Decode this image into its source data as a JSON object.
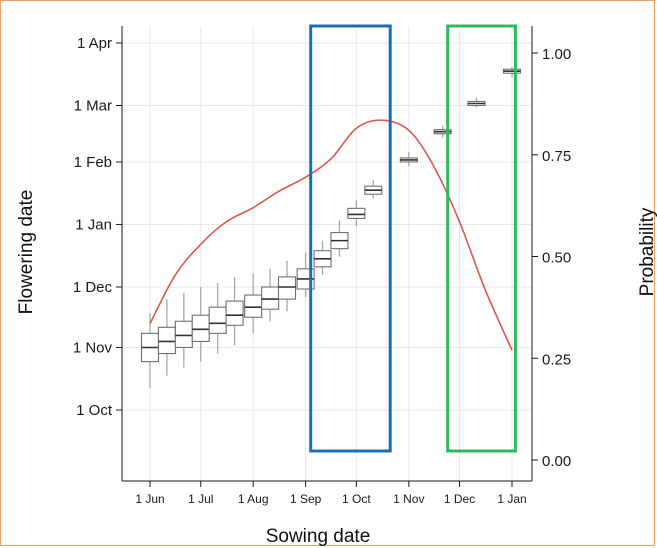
{
  "chart_data": {
    "type": "box+line",
    "xlabel": "Sowing date",
    "ylabel_left": "Flowering date",
    "ylabel_right": "Probability",
    "x_ticks": [
      "1 Jun",
      "1 Jul",
      "1 Aug",
      "1 Sep",
      "1 Oct",
      "1 Nov",
      "1 Dec",
      "1 Jan"
    ],
    "x_tick_days": [
      0,
      30,
      61,
      92,
      122,
      153,
      183,
      214
    ],
    "y_left_ticks": [
      "1 Oct",
      "1 Nov",
      "1 Dec",
      "1 Jan",
      "1 Feb",
      "1 Mar",
      "1 Apr"
    ],
    "y_left_tick_days": [
      0,
      31,
      61,
      92,
      123,
      151,
      182
    ],
    "y_right_ticks": [
      "0.00",
      "0.25",
      "0.50",
      "0.75",
      "1.00"
    ],
    "y_right_ticks_values": [
      0,
      0.25,
      0.5,
      0.75,
      1.0
    ],
    "y_right_lim": [
      0,
      1.05
    ],
    "boxplots": [
      {
        "sowing": "1 Jun",
        "min": "12 Oct",
        "q1": "25 Oct",
        "median": "1 Nov",
        "q3": "8 Nov",
        "max": "18 Nov"
      },
      {
        "sowing": "11 Jun",
        "min": "18 Oct",
        "q1": "29 Oct",
        "median": "4 Nov",
        "q3": "11 Nov",
        "max": "25 Nov"
      },
      {
        "sowing": "21 Jun",
        "min": "22 Oct",
        "q1": "1 Nov",
        "median": "7 Nov",
        "q3": "14 Nov",
        "max": "28 Nov"
      },
      {
        "sowing": "1 Jul",
        "min": "25 Oct",
        "q1": "4 Nov",
        "median": "10 Nov",
        "q3": "17 Nov",
        "max": "1 Dec"
      },
      {
        "sowing": "11 Jul",
        "min": "29 Oct",
        "q1": "8 Nov",
        "median": "13 Nov",
        "q3": "21 Nov",
        "max": "3 Dec"
      },
      {
        "sowing": "21 Jul",
        "min": "2 Nov",
        "q1": "12 Nov",
        "median": "17 Nov",
        "q3": "24 Nov",
        "max": "6 Dec"
      },
      {
        "sowing": "1 Aug",
        "min": "8 Nov",
        "q1": "16 Nov",
        "median": "21 Nov",
        "q3": "27 Nov",
        "max": "8 Dec"
      },
      {
        "sowing": "11 Aug",
        "min": "14 Nov",
        "q1": "20 Nov",
        "median": "25 Nov",
        "q3": "1 Dec",
        "max": "10 Dec"
      },
      {
        "sowing": "21 Aug",
        "min": "19 Nov",
        "q1": "25 Nov",
        "median": "1 Dec",
        "q3": "6 Dec",
        "max": "14 Dec"
      },
      {
        "sowing": "1 Sep",
        "min": "26 Nov",
        "q1": "30 Nov",
        "median": "5 Dec",
        "q3": "10 Dec",
        "max": "18 Dec"
      },
      {
        "sowing": "11 Sep",
        "min": "7 Dec",
        "q1": "11 Dec",
        "median": "15 Dec",
        "q3": "19 Dec",
        "max": "24 Dec"
      },
      {
        "sowing": "21 Sep",
        "min": "16 Dec",
        "q1": "20 Dec",
        "median": "24 Dec",
        "q3": "28 Dec",
        "max": "3 Jan"
      },
      {
        "sowing": "1 Oct",
        "min": "31 Dec",
        "q1": "4 Jan",
        "median": "6 Jan",
        "q3": "9 Jan",
        "max": "13 Jan"
      },
      {
        "sowing": "11 Oct",
        "min": "14 Jan",
        "q1": "16 Jan",
        "median": "18 Jan",
        "q3": "20 Jan",
        "max": "23 Jan"
      },
      {
        "sowing": "1 Nov",
        "min": "30 Jan",
        "q1": "1 Feb",
        "median": "2 Feb",
        "q3": "3 Feb",
        "max": "6 Feb"
      },
      {
        "sowing": "21 Nov",
        "min": "13 Feb",
        "q1": "15 Feb",
        "median": "16 Feb",
        "q3": "17 Feb",
        "max": "19 Feb"
      },
      {
        "sowing": "11 Dec",
        "min": "28 Feb",
        "q1": "1 Mar",
        "median": "2 Mar",
        "q3": "3 Mar",
        "max": "5 Mar"
      },
      {
        "sowing": "1 Jan",
        "min": "15 Mar",
        "q1": "17 Mar",
        "median": "18 Mar",
        "q3": "19 Mar",
        "max": "20 Mar"
      }
    ],
    "probability_line": {
      "x": [
        "1 Jun",
        "16 Jun",
        "1 Jul",
        "16 Jul",
        "1 Aug",
        "16 Aug",
        "1 Sep",
        "16 Sep",
        "1 Oct",
        "16 Oct",
        "1 Nov",
        "16 Nov",
        "1 Dec",
        "16 Dec",
        "1 Jan"
      ],
      "y": [
        0.335,
        0.455,
        0.53,
        0.585,
        0.62,
        0.66,
        0.695,
        0.74,
        0.815,
        0.835,
        0.81,
        0.72,
        0.585,
        0.42,
        0.27
      ]
    },
    "highlight_boxes": [
      {
        "color": "#1a6fb0",
        "x_from": "4 Sep",
        "x_to": "21 Oct"
      },
      {
        "color": "#2db85a",
        "x_from": "24 Nov",
        "x_to": "3 Jan"
      }
    ],
    "colors": {
      "line": "#e0564a",
      "box_stroke": "#6f6f6f",
      "frame": "#e8a36a",
      "grid": "#e9e9e9",
      "blue": "#1a6fb0",
      "green": "#2db85a"
    }
  }
}
